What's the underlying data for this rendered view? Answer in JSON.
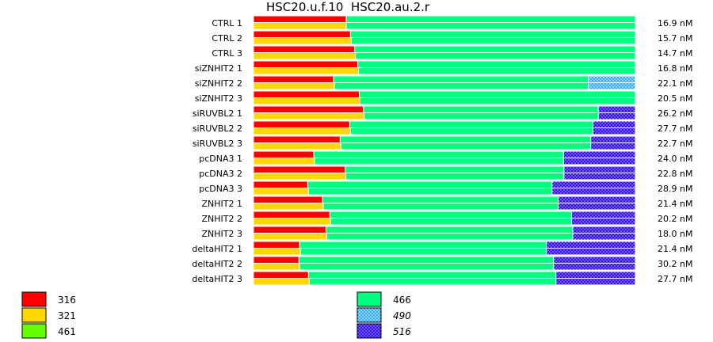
{
  "chart_data": {
    "type": "bar",
    "title": "HSC20.u.f.10  HSC20.au.2.r",
    "colors": {
      "316": "#ff0000",
      "321": "#ffd700",
      "461": "#66ff00",
      "466": "#00ff80",
      "490": "#1fa3ff",
      "516": "#2a00e0"
    },
    "legend": [
      {
        "label": "316",
        "italic": false
      },
      {
        "label": "321",
        "italic": false
      },
      {
        "label": "461",
        "italic": false
      },
      {
        "label": "466",
        "italic": false
      },
      {
        "label": "490",
        "italic": true
      },
      {
        "label": "516",
        "italic": true
      }
    ],
    "rows": [
      {
        "label": "CTRL 1",
        "conc": "16.9 nM",
        "top": [
          [
            "316",
            0.243
          ],
          [
            "466",
            0.757
          ]
        ],
        "bottom": [
          [
            "321",
            0.243
          ],
          [
            "466",
            0.757
          ]
        ]
      },
      {
        "label": "CTRL 2",
        "conc": "15.7 nM",
        "top": [
          [
            "316",
            0.254
          ],
          [
            "466",
            0.746
          ]
        ],
        "bottom": [
          [
            "321",
            0.256
          ],
          [
            "466",
            0.744
          ]
        ]
      },
      {
        "label": "CTRL 3",
        "conc": "14.7 nM",
        "top": [
          [
            "316",
            0.265
          ],
          [
            "466",
            0.735
          ]
        ],
        "bottom": [
          [
            "321",
            0.267
          ],
          [
            "466",
            0.733
          ]
        ]
      },
      {
        "label": "siZNHIT2 1",
        "conc": "16.8 nM",
        "top": [
          [
            "316",
            0.273
          ],
          [
            "466",
            0.727
          ]
        ],
        "bottom": [
          [
            "321",
            0.275
          ],
          [
            "466",
            0.725
          ]
        ]
      },
      {
        "label": "siZNHIT2 2",
        "conc": "22.1 nM",
        "top": [
          [
            "316",
            0.21
          ],
          [
            "466",
            0.667
          ],
          [
            "490",
            0.123
          ]
        ],
        "bottom": [
          [
            "321",
            0.212
          ],
          [
            "466",
            0.665
          ],
          [
            "490",
            0.123
          ]
        ]
      },
      {
        "label": "siZNHIT2 3",
        "conc": "20.5 nM",
        "top": [
          [
            "316",
            0.277
          ],
          [
            "466",
            0.723
          ]
        ],
        "bottom": [
          [
            "321",
            0.279
          ],
          [
            "466",
            0.721
          ]
        ]
      },
      {
        "label": "siRUVBL2 1",
        "conc": "26.2 nM",
        "top": [
          [
            "316",
            0.288
          ],
          [
            "466",
            0.615
          ],
          [
            "516",
            0.097
          ]
        ],
        "bottom": [
          [
            "321",
            0.29
          ],
          [
            "466",
            0.613
          ],
          [
            "516",
            0.097
          ]
        ]
      },
      {
        "label": "siRUVBL2 2",
        "conc": "27.7 nM",
        "top": [
          [
            "316",
            0.252
          ],
          [
            "466",
            0.637
          ],
          [
            "516",
            0.111
          ]
        ],
        "bottom": [
          [
            "321",
            0.254
          ],
          [
            "466",
            0.635
          ],
          [
            "516",
            0.111
          ]
        ]
      },
      {
        "label": "siRUVBL2 3",
        "conc": "22.7 nM",
        "top": [
          [
            "316",
            0.227
          ],
          [
            "466",
            0.656
          ],
          [
            "516",
            0.117
          ]
        ],
        "bottom": [
          [
            "321",
            0.229
          ],
          [
            "466",
            0.654
          ],
          [
            "516",
            0.117
          ]
        ]
      },
      {
        "label": "pcDNA3 1",
        "conc": "24.0 nM",
        "top": [
          [
            "316",
            0.158
          ],
          [
            "466",
            0.654
          ],
          [
            "516",
            0.188
          ]
        ],
        "bottom": [
          [
            "321",
            0.16
          ],
          [
            "466",
            0.652
          ],
          [
            "516",
            0.188
          ]
        ]
      },
      {
        "label": "pcDNA3 2",
        "conc": "22.8 nM",
        "top": [
          [
            "316",
            0.24
          ],
          [
            "466",
            0.573
          ],
          [
            "516",
            0.187
          ]
        ],
        "bottom": [
          [
            "321",
            0.242
          ],
          [
            "466",
            0.571
          ],
          [
            "516",
            0.187
          ]
        ]
      },
      {
        "label": "pcDNA3 3",
        "conc": "28.9 nM",
        "top": [
          [
            "316",
            0.142
          ],
          [
            "466",
            0.64
          ],
          [
            "516",
            0.218
          ]
        ],
        "bottom": [
          [
            "321",
            0.144
          ],
          [
            "466",
            0.638
          ],
          [
            "516",
            0.218
          ]
        ]
      },
      {
        "label": "ZNHIT2 1",
        "conc": "21.4 nM",
        "top": [
          [
            "316",
            0.181
          ],
          [
            "466",
            0.617
          ],
          [
            "516",
            0.202
          ]
        ],
        "bottom": [
          [
            "321",
            0.183
          ],
          [
            "466",
            0.615
          ],
          [
            "516",
            0.202
          ]
        ]
      },
      {
        "label": "ZNHIT2 2",
        "conc": "20.2 nM",
        "top": [
          [
            "316",
            0.2
          ],
          [
            "466",
            0.633
          ],
          [
            "516",
            0.167
          ]
        ],
        "bottom": [
          [
            "321",
            0.202
          ],
          [
            "466",
            0.631
          ],
          [
            "516",
            0.167
          ]
        ]
      },
      {
        "label": "ZNHIT2 3",
        "conc": "18.0 nM",
        "top": [
          [
            "316",
            0.19
          ],
          [
            "466",
            0.646
          ],
          [
            "516",
            0.164
          ]
        ],
        "bottom": [
          [
            "321",
            0.192
          ],
          [
            "466",
            0.644
          ],
          [
            "516",
            0.164
          ]
        ]
      },
      {
        "label": "deltaHIT2 1",
        "conc": "21.4 nM",
        "top": [
          [
            "316",
            0.121
          ],
          [
            "466",
            0.646
          ],
          [
            "516",
            0.233
          ]
        ],
        "bottom": [
          [
            "321",
            0.123
          ],
          [
            "466",
            0.644
          ],
          [
            "516",
            0.233
          ]
        ]
      },
      {
        "label": "deltaHIT2 2",
        "conc": "30.2 nM",
        "top": [
          [
            "316",
            0.119
          ],
          [
            "466",
            0.667
          ],
          [
            "516",
            0.214
          ]
        ],
        "bottom": [
          [
            "321",
            0.121
          ],
          [
            "466",
            0.665
          ],
          [
            "516",
            0.214
          ]
        ]
      },
      {
        "label": "deltaHIT2 3",
        "conc": "27.7 nM",
        "top": [
          [
            "316",
            0.144
          ],
          [
            "466",
            0.648
          ],
          [
            "516",
            0.208
          ]
        ],
        "bottom": [
          [
            "321",
            0.146
          ],
          [
            "466",
            0.646
          ],
          [
            "516",
            0.208
          ]
        ]
      }
    ]
  }
}
